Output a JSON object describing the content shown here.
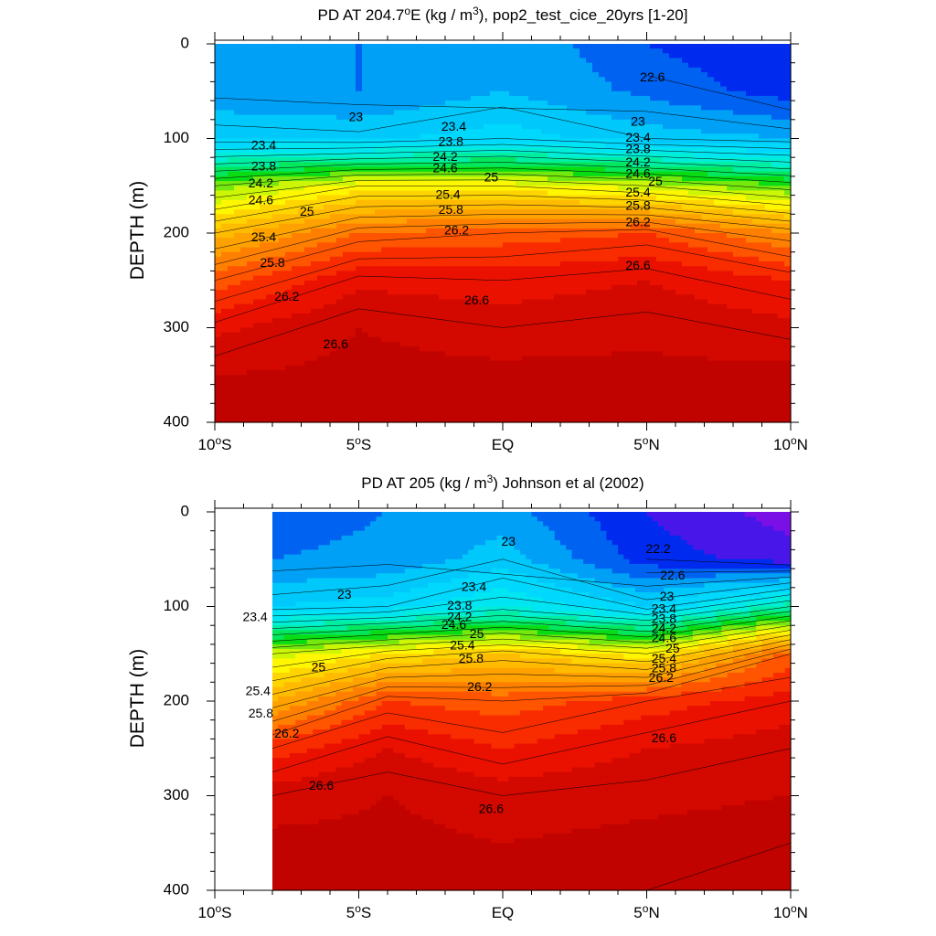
{
  "figure": {
    "panels": [
      {
        "title_prefix": "PD AT 204.7",
        "title_deg": "o",
        "title_mid": "E (kg / m",
        "title_sup": "3",
        "title_suffix": "), pop2_test_cice_20yrs [1-20]",
        "ylabel": "DEPTH (m)"
      },
      {
        "title_prefix": "PD AT 205 (kg / m",
        "title_deg": "",
        "title_mid": "",
        "title_sup": "3",
        "title_suffix": ") Johnson et al (2002)",
        "ylabel": "DEPTH (m)"
      }
    ],
    "x_tick_labels": [
      {
        "value": -10,
        "num": "10",
        "sup": "o",
        "hemi": "S"
      },
      {
        "value": -5,
        "num": "5",
        "sup": "o",
        "hemi": "S"
      },
      {
        "value": 0,
        "num": "EQ",
        "sup": "",
        "hemi": ""
      },
      {
        "value": 5,
        "num": "5",
        "sup": "o",
        "hemi": "N"
      },
      {
        "value": 10,
        "num": "10",
        "sup": "o",
        "hemi": "N"
      }
    ],
    "y_tick_labels": [
      "0",
      "100",
      "200",
      "300",
      "400"
    ]
  },
  "chart_data": [
    {
      "type": "contour",
      "variable": "potential density",
      "x_range": [
        -10,
        10
      ],
      "y_range": [
        0,
        400
      ],
      "y_reversed": true,
      "data_x_range": [
        -10,
        10
      ],
      "contour_levels": [
        22.2,
        22.4,
        22.6,
        22.8,
        23.0,
        23.2,
        23.4,
        23.6,
        23.8,
        24.0,
        24.2,
        24.4,
        24.6,
        24.8,
        25.0,
        25.2,
        25.4,
        25.6,
        25.8,
        26.0,
        26.2,
        26.4,
        26.6,
        26.8
      ],
      "profiles": [
        {
          "x": -10,
          "depths": [
            0,
            50,
            100,
            150,
            200,
            250,
            300,
            350,
            400
          ],
          "values": [
            22.9,
            22.95,
            23.3,
            24.6,
            25.4,
            26.0,
            26.45,
            26.7,
            26.8
          ]
        },
        {
          "x": -5,
          "depths": [
            0,
            50,
            100,
            150,
            200,
            250,
            300,
            350,
            400
          ],
          "values": [
            22.9,
            22.9,
            23.25,
            25.0,
            25.9,
            26.45,
            26.7,
            26.75,
            26.8
          ]
        },
        {
          "x": 0,
          "depths": [
            0,
            50,
            100,
            150,
            200,
            250,
            300,
            350,
            400
          ],
          "values": [
            23.1,
            23.1,
            23.4,
            25.0,
            26.0,
            26.4,
            26.6,
            26.75,
            26.8
          ]
        },
        {
          "x": 5,
          "depths": [
            0,
            50,
            100,
            150,
            200,
            250,
            300,
            350,
            400
          ],
          "values": [
            22.7,
            22.85,
            23.2,
            24.8,
            26.1,
            26.5,
            26.65,
            26.75,
            26.8
          ]
        },
        {
          "x": 10,
          "depths": [
            0,
            50,
            100,
            150,
            200,
            250,
            300,
            350,
            400
          ],
          "values": [
            22.5,
            22.6,
            23.1,
            24.5,
            25.7,
            26.3,
            26.55,
            26.75,
            26.8
          ]
        }
      ],
      "labels": [
        {
          "x": -5.1,
          "depth": 78,
          "value": "23"
        },
        {
          "x": -8.3,
          "depth": 108,
          "value": "23.4"
        },
        {
          "x": -8.3,
          "depth": 130,
          "value": "23.8"
        },
        {
          "x": -8.4,
          "depth": 148,
          "value": "24.2"
        },
        {
          "x": -8.4,
          "depth": 166,
          "value": "24.6"
        },
        {
          "x": -6.8,
          "depth": 178,
          "value": "25"
        },
        {
          "x": -8.3,
          "depth": 205,
          "value": "25.4"
        },
        {
          "x": -8.0,
          "depth": 232,
          "value": "25.8"
        },
        {
          "x": -7.5,
          "depth": 268,
          "value": "26.2"
        },
        {
          "x": -5.8,
          "depth": 318,
          "value": "26.6"
        },
        {
          "x": -1.7,
          "depth": 88,
          "value": "23.4"
        },
        {
          "x": -1.8,
          "depth": 104,
          "value": "23.8"
        },
        {
          "x": -2.0,
          "depth": 120,
          "value": "24.2"
        },
        {
          "x": -2.0,
          "depth": 132,
          "value": "24.6"
        },
        {
          "x": -0.4,
          "depth": 142,
          "value": "25"
        },
        {
          "x": -1.9,
          "depth": 160,
          "value": "25.4"
        },
        {
          "x": -1.8,
          "depth": 176,
          "value": "25.8"
        },
        {
          "x": -1.6,
          "depth": 198,
          "value": "26.2"
        },
        {
          "x": -0.9,
          "depth": 272,
          "value": "26.6"
        },
        {
          "x": 4.7,
          "depth": 83,
          "value": "23"
        },
        {
          "x": 4.7,
          "depth": 100,
          "value": "23.4"
        },
        {
          "x": 4.7,
          "depth": 112,
          "value": "23.8"
        },
        {
          "x": 4.7,
          "depth": 126,
          "value": "24.2"
        },
        {
          "x": 4.7,
          "depth": 138,
          "value": "24.6"
        },
        {
          "x": 5.3,
          "depth": 146,
          "value": "25"
        },
        {
          "x": 4.7,
          "depth": 158,
          "value": "25.4"
        },
        {
          "x": 4.7,
          "depth": 172,
          "value": "25.8"
        },
        {
          "x": 4.7,
          "depth": 189,
          "value": "26.2"
        },
        {
          "x": 4.7,
          "depth": 235,
          "value": "26.6"
        },
        {
          "x": 5.2,
          "depth": 36,
          "value": "22.6"
        }
      ]
    },
    {
      "type": "contour",
      "variable": "potential density",
      "x_range": [
        -10,
        10
      ],
      "y_range": [
        0,
        400
      ],
      "y_reversed": true,
      "data_x_range": [
        -8,
        10
      ],
      "contour_levels": [
        22.2,
        22.4,
        22.6,
        22.8,
        23.0,
        23.2,
        23.4,
        23.6,
        23.8,
        24.0,
        24.2,
        24.4,
        24.6,
        24.8,
        25.0,
        25.2,
        25.4,
        25.6,
        25.8,
        26.0,
        26.2,
        26.4,
        26.6,
        26.8
      ],
      "profiles": [
        {
          "x": -8,
          "depths": [
            0,
            50,
            100,
            150,
            200,
            250,
            300,
            350,
            400
          ],
          "values": [
            22.8,
            22.9,
            23.3,
            24.8,
            25.5,
            26.2,
            26.6,
            26.75,
            26.8
          ]
        },
        {
          "x": -4,
          "depths": [
            0,
            50,
            100,
            150,
            200,
            250,
            300,
            350,
            400
          ],
          "values": [
            22.9,
            22.95,
            23.4,
            25.1,
            26.1,
            26.5,
            26.7,
            26.75,
            26.8
          ]
        },
        {
          "x": 0,
          "depths": [
            0,
            50,
            100,
            150,
            200,
            250,
            300,
            350,
            400
          ],
          "values": [
            23.0,
            23.2,
            23.7,
            25.3,
            26.0,
            26.3,
            26.6,
            26.7,
            26.8
          ]
        },
        {
          "x": 5,
          "depths": [
            0,
            50,
            100,
            150,
            200,
            250,
            300,
            350,
            400
          ],
          "values": [
            22.5,
            22.6,
            23.3,
            25.0,
            26.2,
            26.5,
            26.65,
            26.75,
            26.8
          ]
        },
        {
          "x": 10,
          "depths": [
            0,
            50,
            100,
            150,
            200,
            250,
            300,
            350,
            400
          ],
          "values": [
            22.2,
            22.4,
            24.0,
            26.0,
            26.4,
            26.6,
            26.7,
            26.8,
            26.8
          ]
        }
      ],
      "labels": [
        {
          "x": -5.5,
          "depth": 88,
          "value": "23"
        },
        {
          "x": -8.6,
          "depth": 112,
          "value": "23.4"
        },
        {
          "x": -6.4,
          "depth": 165,
          "value": "25"
        },
        {
          "x": -8.5,
          "depth": 190,
          "value": "25.4"
        },
        {
          "x": -8.4,
          "depth": 214,
          "value": "25.8"
        },
        {
          "x": -7.5,
          "depth": 235,
          "value": "26.2"
        },
        {
          "x": -6.3,
          "depth": 290,
          "value": "26.6"
        },
        {
          "x": 0.2,
          "depth": 32,
          "value": "23"
        },
        {
          "x": -1.0,
          "depth": 80,
          "value": "23.4"
        },
        {
          "x": -1.5,
          "depth": 100,
          "value": "23.8"
        },
        {
          "x": -1.5,
          "depth": 112,
          "value": "24.2"
        },
        {
          "x": -1.7,
          "depth": 120,
          "value": "24.6"
        },
        {
          "x": -0.9,
          "depth": 130,
          "value": "25"
        },
        {
          "x": -1.4,
          "depth": 142,
          "value": "25.4"
        },
        {
          "x": -1.1,
          "depth": 156,
          "value": "25.8"
        },
        {
          "x": -0.8,
          "depth": 186,
          "value": "26.2"
        },
        {
          "x": -0.4,
          "depth": 315,
          "value": "26.6"
        },
        {
          "x": 5.4,
          "depth": 40,
          "value": "22.2"
        },
        {
          "x": 5.9,
          "depth": 68,
          "value": "22.6"
        },
        {
          "x": 5.7,
          "depth": 90,
          "value": "23"
        },
        {
          "x": 5.6,
          "depth": 103,
          "value": "23.4"
        },
        {
          "x": 5.6,
          "depth": 114,
          "value": "23.8"
        },
        {
          "x": 5.6,
          "depth": 124,
          "value": "24.2"
        },
        {
          "x": 5.6,
          "depth": 134,
          "value": "24.6"
        },
        {
          "x": 5.9,
          "depth": 145,
          "value": "25"
        },
        {
          "x": 5.6,
          "depth": 156,
          "value": "25.4"
        },
        {
          "x": 5.6,
          "depth": 166,
          "value": "25.8"
        },
        {
          "x": 5.5,
          "depth": 176,
          "value": "26.2"
        },
        {
          "x": 5.6,
          "depth": 240,
          "value": "26.6"
        }
      ]
    }
  ]
}
